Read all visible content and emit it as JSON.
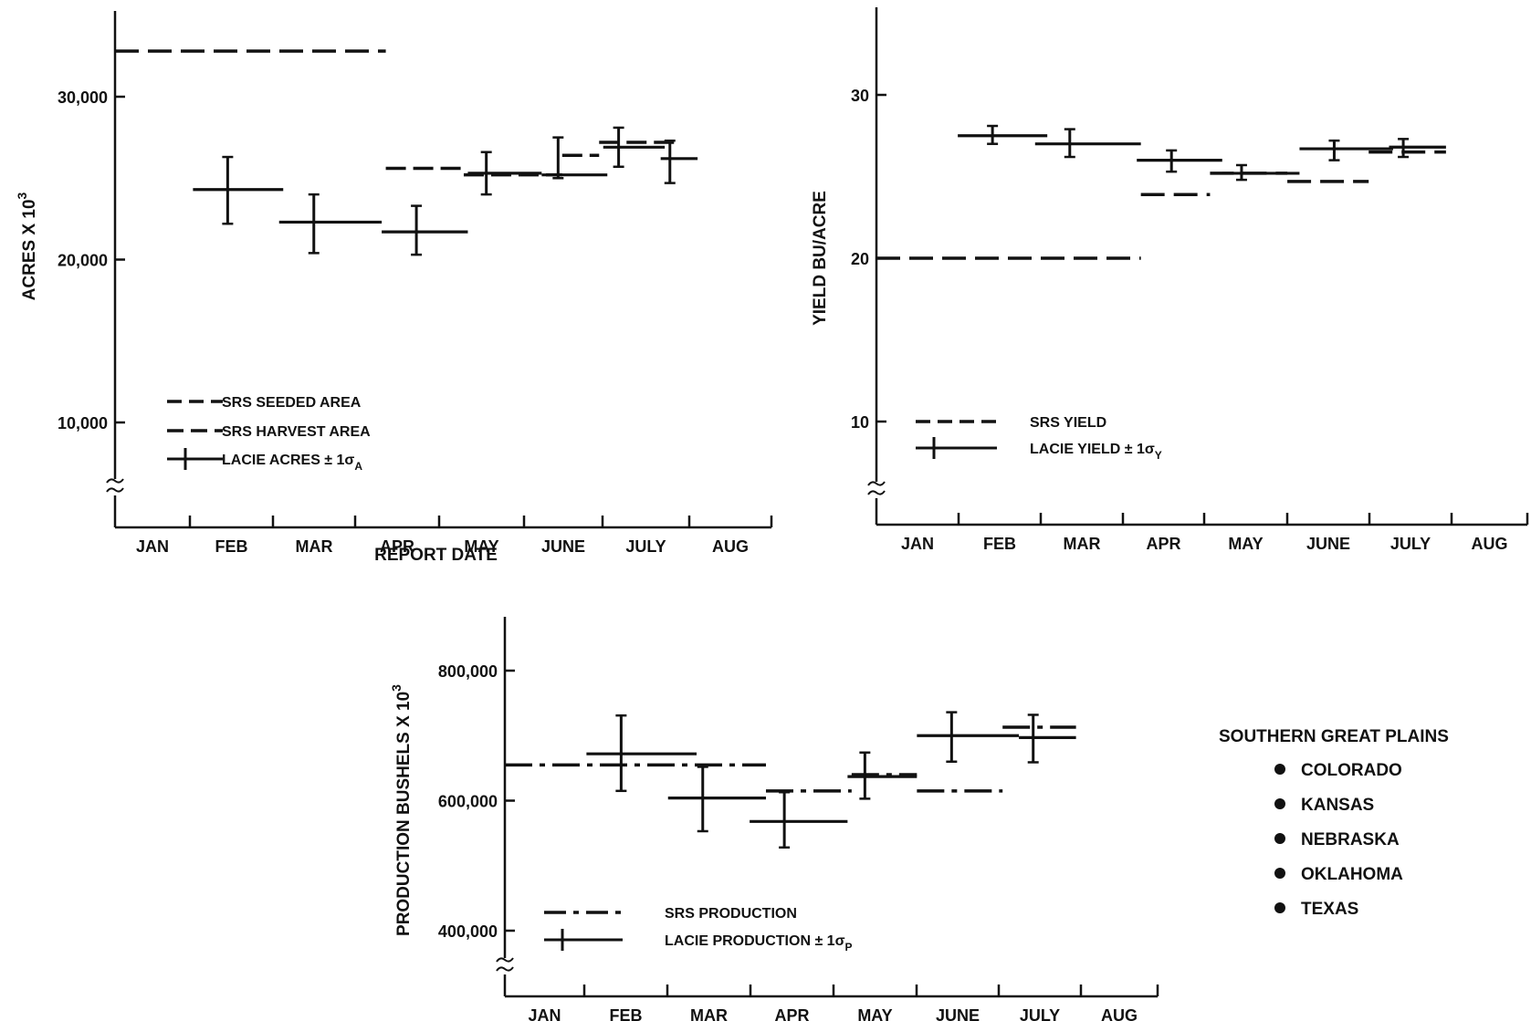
{
  "region": {
    "title": "SOUTHERN GREAT PLAINS",
    "states": [
      "COLORADO",
      "KANSAS",
      "NEBRASKA",
      "OKLAHOMA",
      "TEXAS"
    ]
  },
  "chart_data": [
    {
      "id": "acres",
      "type": "line",
      "ylabel": "ACRES X 10",
      "ylabel_sup": "3",
      "xlabel": "REPORT DATE",
      "categories": [
        "JAN",
        "FEB",
        "MAR",
        "APR",
        "MAY",
        "JUNE",
        "JULY",
        "AUG"
      ],
      "ytick_labels": [
        "30,000",
        "20,000",
        "10,000"
      ],
      "ytick_values": [
        30000,
        20000,
        10000
      ],
      "ylim": [
        5000,
        35000
      ],
      "legend": [
        {
          "label": "SRS SEEDED AREA"
        },
        {
          "label": "SRS HARVEST AREA"
        },
        {
          "label": "LACIE ACRES ± 1σ",
          "sub": "A"
        }
      ],
      "srs_seeded": [
        {
          "x0": 0,
          "x1": 3.3,
          "y": 32800
        }
      ],
      "srs_harvest": [
        {
          "x0": 3.3,
          "x1": 4.25,
          "y": 25600
        },
        {
          "x0": 4.25,
          "x1": 5.45,
          "y": 25200
        },
        {
          "x0": 5.45,
          "x1": 5.9,
          "y": 26400
        },
        {
          "x0": 5.9,
          "x1": 6.9,
          "y": 27200
        }
      ],
      "lacie": [
        {
          "x0": 0.95,
          "x1": 2.05,
          "y": 24300,
          "ci": [
            22200,
            26300
          ]
        },
        {
          "x0": 2.0,
          "x1": 3.25,
          "y": 22300,
          "ci": [
            20400,
            24000
          ]
        },
        {
          "x0": 3.25,
          "x1": 4.3,
          "y": 21700,
          "ci": [
            20300,
            23300
          ]
        },
        {
          "x0": 4.3,
          "x1": 5.2,
          "y": 25300,
          "ci": [
            24000,
            26600
          ]
        },
        {
          "x0": 5.2,
          "x1": 6.0,
          "y": 25200,
          "ci": [
            25000,
            27500
          ]
        },
        {
          "x0": 5.95,
          "x1": 6.7,
          "y": 26900,
          "ci": [
            25700,
            28100
          ]
        },
        {
          "x0": 6.65,
          "x1": 7.1,
          "y": 26200,
          "ci": [
            24700,
            27300
          ]
        }
      ]
    },
    {
      "id": "yield",
      "type": "line",
      "ylabel": "YIELD BU/ACRE",
      "xlabel": "",
      "categories": [
        "JAN",
        "FEB",
        "MAR",
        "APR",
        "MAY",
        "JUNE",
        "JULY",
        "AUG"
      ],
      "ytick_labels": [
        "30",
        "20",
        "10"
      ],
      "ytick_values": [
        30,
        20,
        10
      ],
      "ylim": [
        5,
        35
      ],
      "legend": [
        {
          "label": "SRS YIELD"
        },
        {
          "label": "LACIE YIELD ± 1σ",
          "sub": "Y"
        }
      ],
      "srs_yield": [
        {
          "x0": 0,
          "x1": 3.25,
          "y": 20.0
        },
        {
          "x0": 3.25,
          "x1": 4.1,
          "y": 23.9
        },
        {
          "x0": 4.1,
          "x1": 5.05,
          "y": 25.2
        },
        {
          "x0": 5.05,
          "x1": 6.05,
          "y": 24.7
        },
        {
          "x0": 6.05,
          "x1": 7.0,
          "y": 26.5
        }
      ],
      "lacie": [
        {
          "x0": 1.0,
          "x1": 2.1,
          "y": 27.5,
          "ci": [
            27.0,
            28.1
          ]
        },
        {
          "x0": 1.95,
          "x1": 3.25,
          "y": 27.0,
          "ci": [
            26.2,
            27.9
          ]
        },
        {
          "x0": 3.2,
          "x1": 4.25,
          "y": 26.0,
          "ci": [
            25.3,
            26.6
          ]
        },
        {
          "x0": 4.25,
          "x1": 5.2,
          "y": 25.2,
          "ci": [
            24.8,
            25.7
          ]
        },
        {
          "x0": 5.2,
          "x1": 6.35,
          "y": 26.7,
          "ci": [
            26.0,
            27.2
          ]
        },
        {
          "x0": 6.3,
          "x1": 7.0,
          "y": 26.8,
          "ci": [
            26.2,
            27.3
          ]
        }
      ]
    },
    {
      "id": "production",
      "type": "line",
      "ylabel": "PRODUCTION BUSHELS X 10",
      "ylabel_sup": "3",
      "xlabel": "",
      "categories": [
        "JAN",
        "FEB",
        "MAR",
        "APR",
        "MAY",
        "JUNE",
        "JULY",
        "AUG"
      ],
      "ytick_labels": [
        "800,000",
        "600,000",
        "400,000"
      ],
      "ytick_values": [
        800000,
        600000,
        400000
      ],
      "ylim": [
        320000,
        860000
      ],
      "legend": [
        {
          "label": "SRS PRODUCTION"
        },
        {
          "label": "LACIE PRODUCTION ± 1σ",
          "sub": "P"
        }
      ],
      "srs_production": [
        {
          "x0": 0,
          "x1": 3.2,
          "y": 655000
        },
        {
          "x0": 3.2,
          "x1": 4.25,
          "y": 615000
        },
        {
          "x0": 4.25,
          "x1": 5.05,
          "y": 640000
        },
        {
          "x0": 5.05,
          "x1": 6.1,
          "y": 615000
        },
        {
          "x0": 6.1,
          "x1": 7.0,
          "y": 713000
        }
      ],
      "lacie": [
        {
          "x0": 1.0,
          "x1": 2.35,
          "y": 672000,
          "ci": [
            615000,
            731000
          ]
        },
        {
          "x0": 2.0,
          "x1": 3.2,
          "y": 604000,
          "ci": [
            553000,
            652000
          ]
        },
        {
          "x0": 3.0,
          "x1": 4.2,
          "y": 568000,
          "ci": [
            528000,
            613000
          ]
        },
        {
          "x0": 4.2,
          "x1": 5.05,
          "y": 637000,
          "ci": [
            603000,
            674000
          ]
        },
        {
          "x0": 5.05,
          "x1": 6.3,
          "y": 700000,
          "ci": [
            660000,
            736000
          ]
        },
        {
          "x0": 6.3,
          "x1": 7.0,
          "y": 697000,
          "ci": [
            659000,
            732000
          ]
        }
      ]
    }
  ]
}
